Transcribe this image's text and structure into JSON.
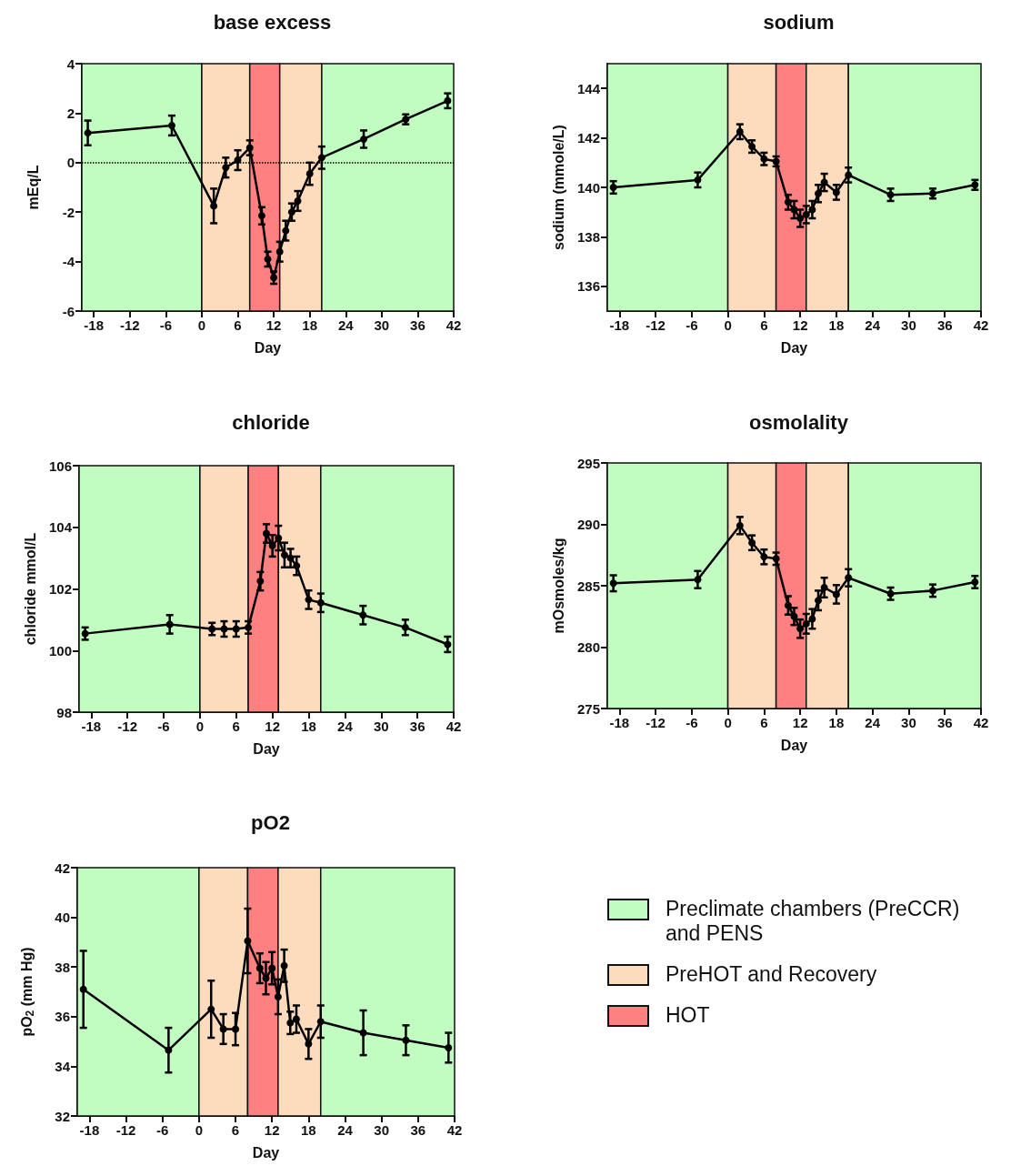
{
  "chart_data": [
    {
      "type": "line",
      "title": "base excess",
      "xlabel": "Day",
      "ylabel": "mEq/L",
      "marker": "circle",
      "legend": "bottom right",
      "xlim": [
        -20,
        42
      ],
      "xticks": [
        -18,
        -12,
        -6,
        0,
        6,
        12,
        18,
        24,
        30,
        36,
        42
      ],
      "ylim": [
        -6,
        4
      ],
      "yticks": [
        -6,
        -4,
        -2,
        0,
        2,
        4
      ],
      "x": [
        -19,
        -5,
        2,
        4,
        6,
        8,
        10,
        11,
        12,
        13,
        14,
        15,
        16,
        18,
        20,
        27,
        34,
        41
      ],
      "series": [
        {
          "color": "#000000",
          "values": [
            1.2,
            1.5,
            -1.75,
            -0.2,
            0.1,
            0.6,
            -2.15,
            -3.9,
            -4.65,
            -3.6,
            -2.75,
            -2,
            -1.55,
            -0.45,
            0.2,
            0.95,
            1.75,
            2.5
          ],
          "errors": [
            0.5,
            0.4,
            0.7,
            0.4,
            0.4,
            0.3,
            0.35,
            0.3,
            0.25,
            0.4,
            0.4,
            0.35,
            0.4,
            0.45,
            0.45,
            0.35,
            0.2,
            0.3
          ]
        }
      ],
      "ref_lines": [
        {
          "axis": "y",
          "value": 0,
          "color": "#000000",
          "line_style": "dotted"
        }
      ],
      "bands": [
        {
          "axis": "x",
          "from": -20,
          "to": 0,
          "color": "#c1fcc1",
          "label": "Preclimate chambers (PreCCR) and PENS"
        },
        {
          "axis": "x",
          "from": 0,
          "to": 8,
          "color": "#fddcbd",
          "label": "PreHOT and Recovery"
        },
        {
          "axis": "x",
          "from": 8,
          "to": 13,
          "color": "#fe8080",
          "label": "HOT"
        },
        {
          "axis": "x",
          "from": 13,
          "to": 20,
          "color": "#fddcbd"
        },
        {
          "axis": "x",
          "from": 20,
          "to": 42,
          "color": "#c1fcc1"
        }
      ]
    },
    {
      "type": "line",
      "title": "sodium",
      "xlabel": "Day",
      "ylabel": "sodium (mmole/L)",
      "marker": "circle",
      "xlim": [
        -20,
        42
      ],
      "xticks": [
        -18,
        -12,
        -6,
        0,
        6,
        12,
        18,
        24,
        30,
        36,
        42
      ],
      "ylim": [
        135,
        145
      ],
      "yticks": [
        136,
        138,
        140,
        142,
        144
      ],
      "x": [
        -19,
        -5,
        2,
        4,
        6,
        8,
        10,
        11,
        12,
        13,
        14,
        15,
        16,
        18,
        20,
        27,
        34,
        41
      ],
      "series": [
        {
          "color": "#000000",
          "values": [
            140,
            140.3,
            142.25,
            141.65,
            141.15,
            141.05,
            139.4,
            139.1,
            138.75,
            138.9,
            139.1,
            139.75,
            140.2,
            139.8,
            140.5,
            139.7,
            139.75,
            140.1
          ],
          "errors": [
            0.25,
            0.3,
            0.3,
            0.25,
            0.25,
            0.2,
            0.3,
            0.35,
            0.35,
            0.35,
            0.35,
            0.35,
            0.35,
            0.3,
            0.3,
            0.25,
            0.2,
            0.2
          ]
        }
      ],
      "bands": [
        {
          "axis": "x",
          "from": -20,
          "to": 0,
          "color": "#c1fcc1"
        },
        {
          "axis": "x",
          "from": 0,
          "to": 8,
          "color": "#fddcbd"
        },
        {
          "axis": "x",
          "from": 8,
          "to": 13,
          "color": "#fe8080"
        },
        {
          "axis": "x",
          "from": 13,
          "to": 20,
          "color": "#fddcbd"
        },
        {
          "axis": "x",
          "from": 20,
          "to": 42,
          "color": "#c1fcc1"
        }
      ]
    },
    {
      "type": "line",
      "title": "chloride",
      "xlabel": "Day",
      "ylabel": "chloride mmol/L",
      "marker": "circle",
      "xlim": [
        -20,
        42
      ],
      "xticks": [
        -18,
        -12,
        -6,
        0,
        6,
        12,
        18,
        24,
        30,
        36,
        42
      ],
      "ylim": [
        98,
        106
      ],
      "yticks": [
        98,
        100,
        102,
        104,
        106
      ],
      "x": [
        -19,
        -5,
        2,
        4,
        6,
        8,
        10,
        11,
        12,
        13,
        14,
        15,
        16,
        18,
        20,
        27,
        34,
        41
      ],
      "series": [
        {
          "color": "#000000",
          "values": [
            100.55,
            100.85,
            100.7,
            100.7,
            100.7,
            100.75,
            102.25,
            103.8,
            103.4,
            103.65,
            103.1,
            103,
            102.75,
            101.65,
            101.55,
            101.15,
            100.75,
            100.2
          ],
          "errors": [
            0.2,
            0.3,
            0.2,
            0.25,
            0.25,
            0.2,
            0.3,
            0.3,
            0.35,
            0.4,
            0.4,
            0.3,
            0.3,
            0.3,
            0.3,
            0.3,
            0.25,
            0.25
          ]
        }
      ],
      "bands": [
        {
          "axis": "x",
          "from": -20,
          "to": 0,
          "color": "#c1fcc1"
        },
        {
          "axis": "x",
          "from": 0,
          "to": 8,
          "color": "#fddcbd"
        },
        {
          "axis": "x",
          "from": 8,
          "to": 13,
          "color": "#fe8080"
        },
        {
          "axis": "x",
          "from": 13,
          "to": 20,
          "color": "#fddcbd"
        },
        {
          "axis": "x",
          "from": 20,
          "to": 42,
          "color": "#c1fcc1"
        }
      ]
    },
    {
      "type": "line",
      "title": "osmolality",
      "xlabel": "Day",
      "ylabel": "mOsmoles/kg",
      "marker": "circle",
      "xlim": [
        -20,
        42
      ],
      "xticks": [
        -18,
        -12,
        -6,
        0,
        6,
        12,
        18,
        24,
        30,
        36,
        42
      ],
      "ylim": [
        275,
        295
      ],
      "yticks": [
        275,
        280,
        285,
        290,
        295
      ],
      "x": [
        -19,
        -5,
        2,
        4,
        6,
        8,
        10,
        11,
        12,
        13,
        14,
        15,
        16,
        18,
        20,
        27,
        34,
        41
      ],
      "series": [
        {
          "color": "#000000",
          "values": [
            285.2,
            285.5,
            289.9,
            288.5,
            287.35,
            287.2,
            283.4,
            282.5,
            281.5,
            281.9,
            282.3,
            283.8,
            284.85,
            284.3,
            285.65,
            284.35,
            284.6,
            285.3
          ],
          "errors": [
            0.65,
            0.7,
            0.7,
            0.6,
            0.6,
            0.5,
            0.75,
            0.7,
            0.75,
            0.8,
            0.8,
            0.8,
            0.8,
            0.75,
            0.7,
            0.5,
            0.5,
            0.5
          ]
        }
      ],
      "bands": [
        {
          "axis": "x",
          "from": -20,
          "to": 0,
          "color": "#c1fcc1"
        },
        {
          "axis": "x",
          "from": 0,
          "to": 8,
          "color": "#fddcbd"
        },
        {
          "axis": "x",
          "from": 8,
          "to": 13,
          "color": "#fe8080"
        },
        {
          "axis": "x",
          "from": 13,
          "to": 20,
          "color": "#fddcbd"
        },
        {
          "axis": "x",
          "from": 20,
          "to": 42,
          "color": "#c1fcc1"
        }
      ]
    },
    {
      "type": "line",
      "title": "pO2",
      "xlabel": "Day",
      "ylabel": "pO$_{2}$ (mm Hg)",
      "marker": "circle",
      "xlim": [
        -20,
        42
      ],
      "xticks": [
        -18,
        -12,
        -6,
        0,
        6,
        12,
        18,
        24,
        30,
        36,
        42
      ],
      "ylim": [
        32,
        42
      ],
      "yticks": [
        32,
        34,
        36,
        38,
        40,
        42
      ],
      "x": [
        -19,
        -5,
        2,
        4,
        6,
        8,
        10,
        11,
        12,
        13,
        14,
        15,
        16,
        18,
        20,
        27,
        34,
        41
      ],
      "series": [
        {
          "color": "#000000",
          "values": [
            37.1,
            34.65,
            36.3,
            35.5,
            35.5,
            39.05,
            37.95,
            37.55,
            37.95,
            36.8,
            38.05,
            35.75,
            35.9,
            34.9,
            35.8,
            35.35,
            35.05,
            34.75
          ],
          "errors": [
            1.55,
            0.9,
            1.15,
            0.6,
            0.65,
            1.3,
            0.6,
            0.65,
            0.65,
            0.7,
            0.65,
            0.45,
            0.55,
            0.6,
            0.65,
            0.9,
            0.6,
            0.6
          ]
        }
      ],
      "bands": [
        {
          "axis": "x",
          "from": -20,
          "to": 0,
          "color": "#c1fcc1"
        },
        {
          "axis": "x",
          "from": 0,
          "to": 8,
          "color": "#fddcbd"
        },
        {
          "axis": "x",
          "from": 8,
          "to": 13,
          "color": "#fe8080"
        },
        {
          "axis": "x",
          "from": 13,
          "to": 20,
          "color": "#fddcbd"
        },
        {
          "axis": "x",
          "from": 20,
          "to": 42,
          "color": "#c1fcc1"
        }
      ]
    }
  ]
}
